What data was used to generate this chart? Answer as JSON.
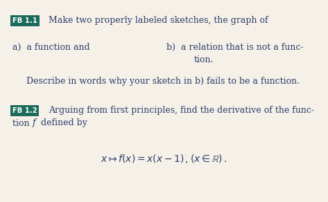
{
  "bg_color": "#f5f0e8",
  "box_color": "#1a6b5a",
  "box_text_color": "#ffffff",
  "body_text_color": "#2c3e6b",
  "figsize": [
    4.73,
    2.92
  ],
  "dpi": 100,
  "fb11_box": "FB 1.1",
  "fb11_text": "Make two properly labeled sketches, the graph of",
  "fb11_a": "a)  a function and",
  "fb11_b_line1": "b)  a relation that is not a func-",
  "fb11_b_line2": "tion.",
  "fb11_desc": "Describe in words why your sketch in b) fails to be a function.",
  "fb12_box": "FB 1.2",
  "fb12_line1": "Arguing from first principles, find the derivative of the func-",
  "fb12_line2a": "tion ",
  "fb12_line2f": "f",
  "fb12_line2b": " defined by",
  "formula": "x \\mapsto f(x) = x(x-1)\\,,(x \\in \\mathbb{R})\\,."
}
